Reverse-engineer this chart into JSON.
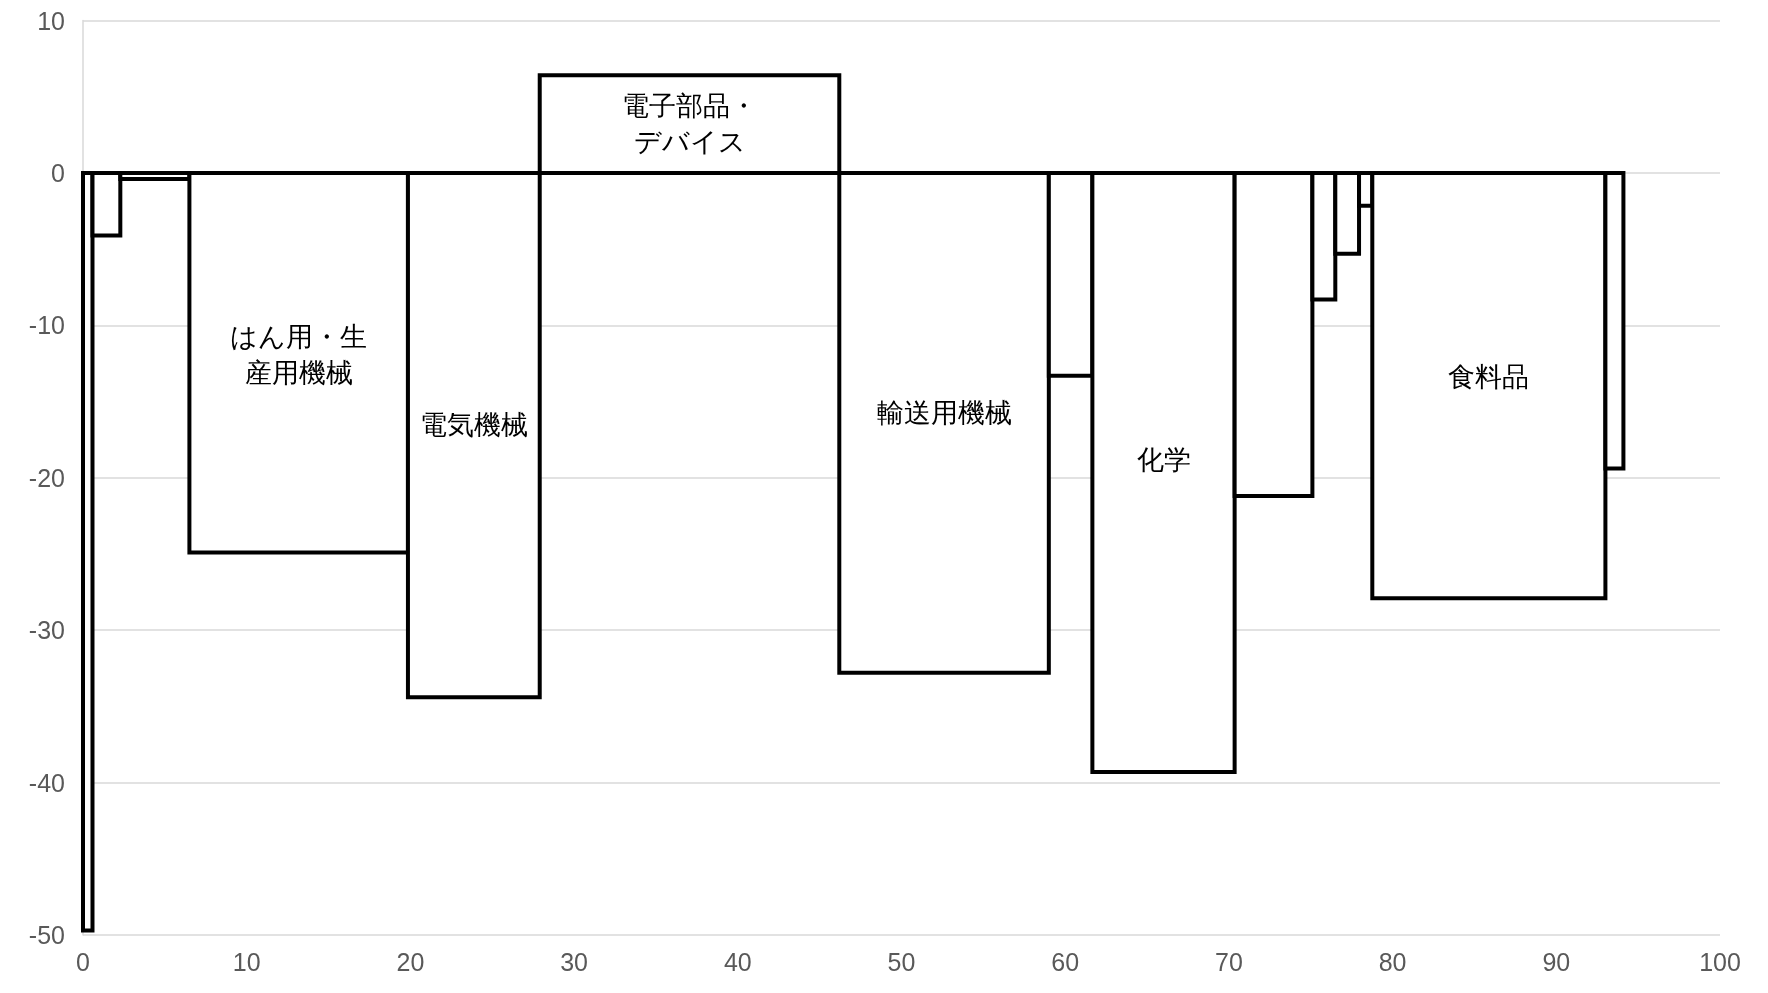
{
  "chart_data": {
    "type": "histogram",
    "color": "#000000",
    "bins": [
      0,
      0.58,
      2.28,
      6.5,
      19.85,
      27.9,
      46.2,
      59.0,
      61.66,
      70.35,
      75.1,
      76.5,
      77.95,
      78.76,
      93.0,
      94.1
    ],
    "values": [
      -49.7,
      -4.1,
      -0.4,
      -24.9,
      -34.4,
      6.4,
      -32.8,
      -13.3,
      -39.3,
      -21.2,
      -8.3,
      -5.3,
      -2.15,
      -27.9,
      -19.4
    ],
    "xlim": [
      0,
      100
    ],
    "xticks": [
      0,
      10,
      20,
      30,
      40,
      50,
      60,
      70,
      80,
      90,
      100
    ],
    "ylim": [
      -50,
      10
    ],
    "yticks": [
      -50,
      -40,
      -30,
      -20,
      -10,
      0,
      10
    ],
    "grid": "y",
    "legend": false,
    "value_labels": [
      null,
      null,
      null,
      "はん用・生産用機械",
      "電気機械",
      "電子部品・デバイス",
      "輸送用機械",
      null,
      "化学",
      null,
      null,
      null,
      null,
      "食料品",
      null
    ]
  }
}
